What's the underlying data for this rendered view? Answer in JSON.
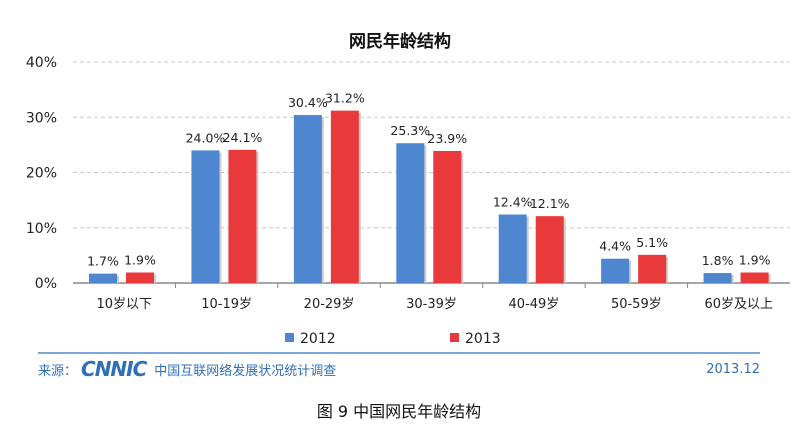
{
  "chart_data": {
    "type": "bar",
    "title": "网民年龄结构",
    "categories": [
      "10岁以下",
      "10-19岁",
      "20-29岁",
      "30-39岁",
      "40-49岁",
      "50-59岁",
      "60岁及以上"
    ],
    "series": [
      {
        "name": "2012",
        "color": "#4f86d0",
        "values": [
          1.7,
          24.0,
          30.4,
          25.3,
          12.4,
          4.4,
          1.8
        ]
      },
      {
        "name": "2013",
        "color": "#e83a3a",
        "values": [
          1.9,
          24.1,
          31.2,
          23.9,
          12.1,
          5.1,
          1.9
        ]
      }
    ],
    "ylim": [
      0,
      40
    ],
    "yticks": [
      "0%",
      "10%",
      "20%",
      "30%",
      "40%"
    ],
    "ytick_values": [
      0,
      10,
      20,
      30,
      40
    ],
    "value_suffix": "%",
    "grid": true,
    "legend": "bottom"
  },
  "footer": {
    "source_label": "来源：",
    "logo_text": "CNNIC",
    "source_name": "中国互联网络发展状况统计调查",
    "date": "2013.12"
  },
  "caption": "图 9 中国网民年龄结构"
}
